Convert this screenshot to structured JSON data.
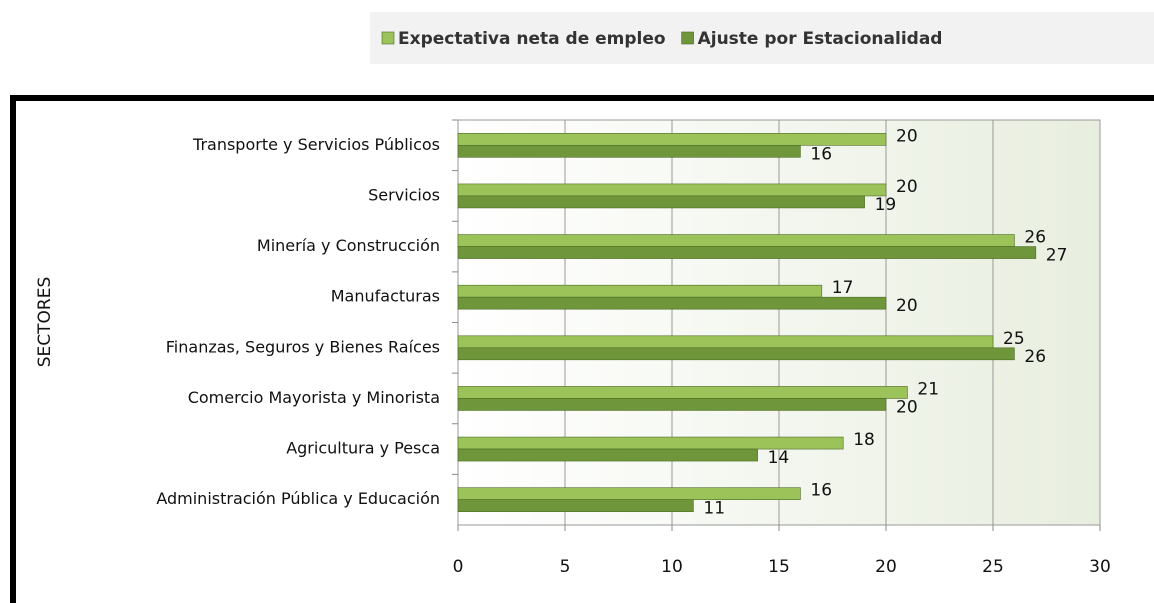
{
  "chart_data": {
    "type": "bar",
    "orientation": "horizontal",
    "y_label": "SECTORES",
    "categories": [
      "Transporte y Servicios Públicos",
      "Servicios",
      "Minería y Construcción",
      "Manufacturas",
      "Finanzas, Seguros y Bienes Raíces",
      "Comercio Mayorista y Minorista",
      "Agricultura y Pesca",
      "Administración Pública y Educación"
    ],
    "series": [
      {
        "name": "Expectativa neta de empleo",
        "color": "#9bc35a",
        "values": [
          20,
          20,
          26,
          17,
          25,
          21,
          18,
          16
        ]
      },
      {
        "name": "Ajuste por Estacionalidad",
        "color": "#6f963a",
        "values": [
          16,
          19,
          27,
          20,
          26,
          20,
          14,
          11
        ]
      }
    ],
    "xlim": [
      0,
      30
    ],
    "xticks": [
      0,
      5,
      10,
      15,
      20,
      25,
      30
    ],
    "grid": true,
    "legend": "top-right"
  }
}
